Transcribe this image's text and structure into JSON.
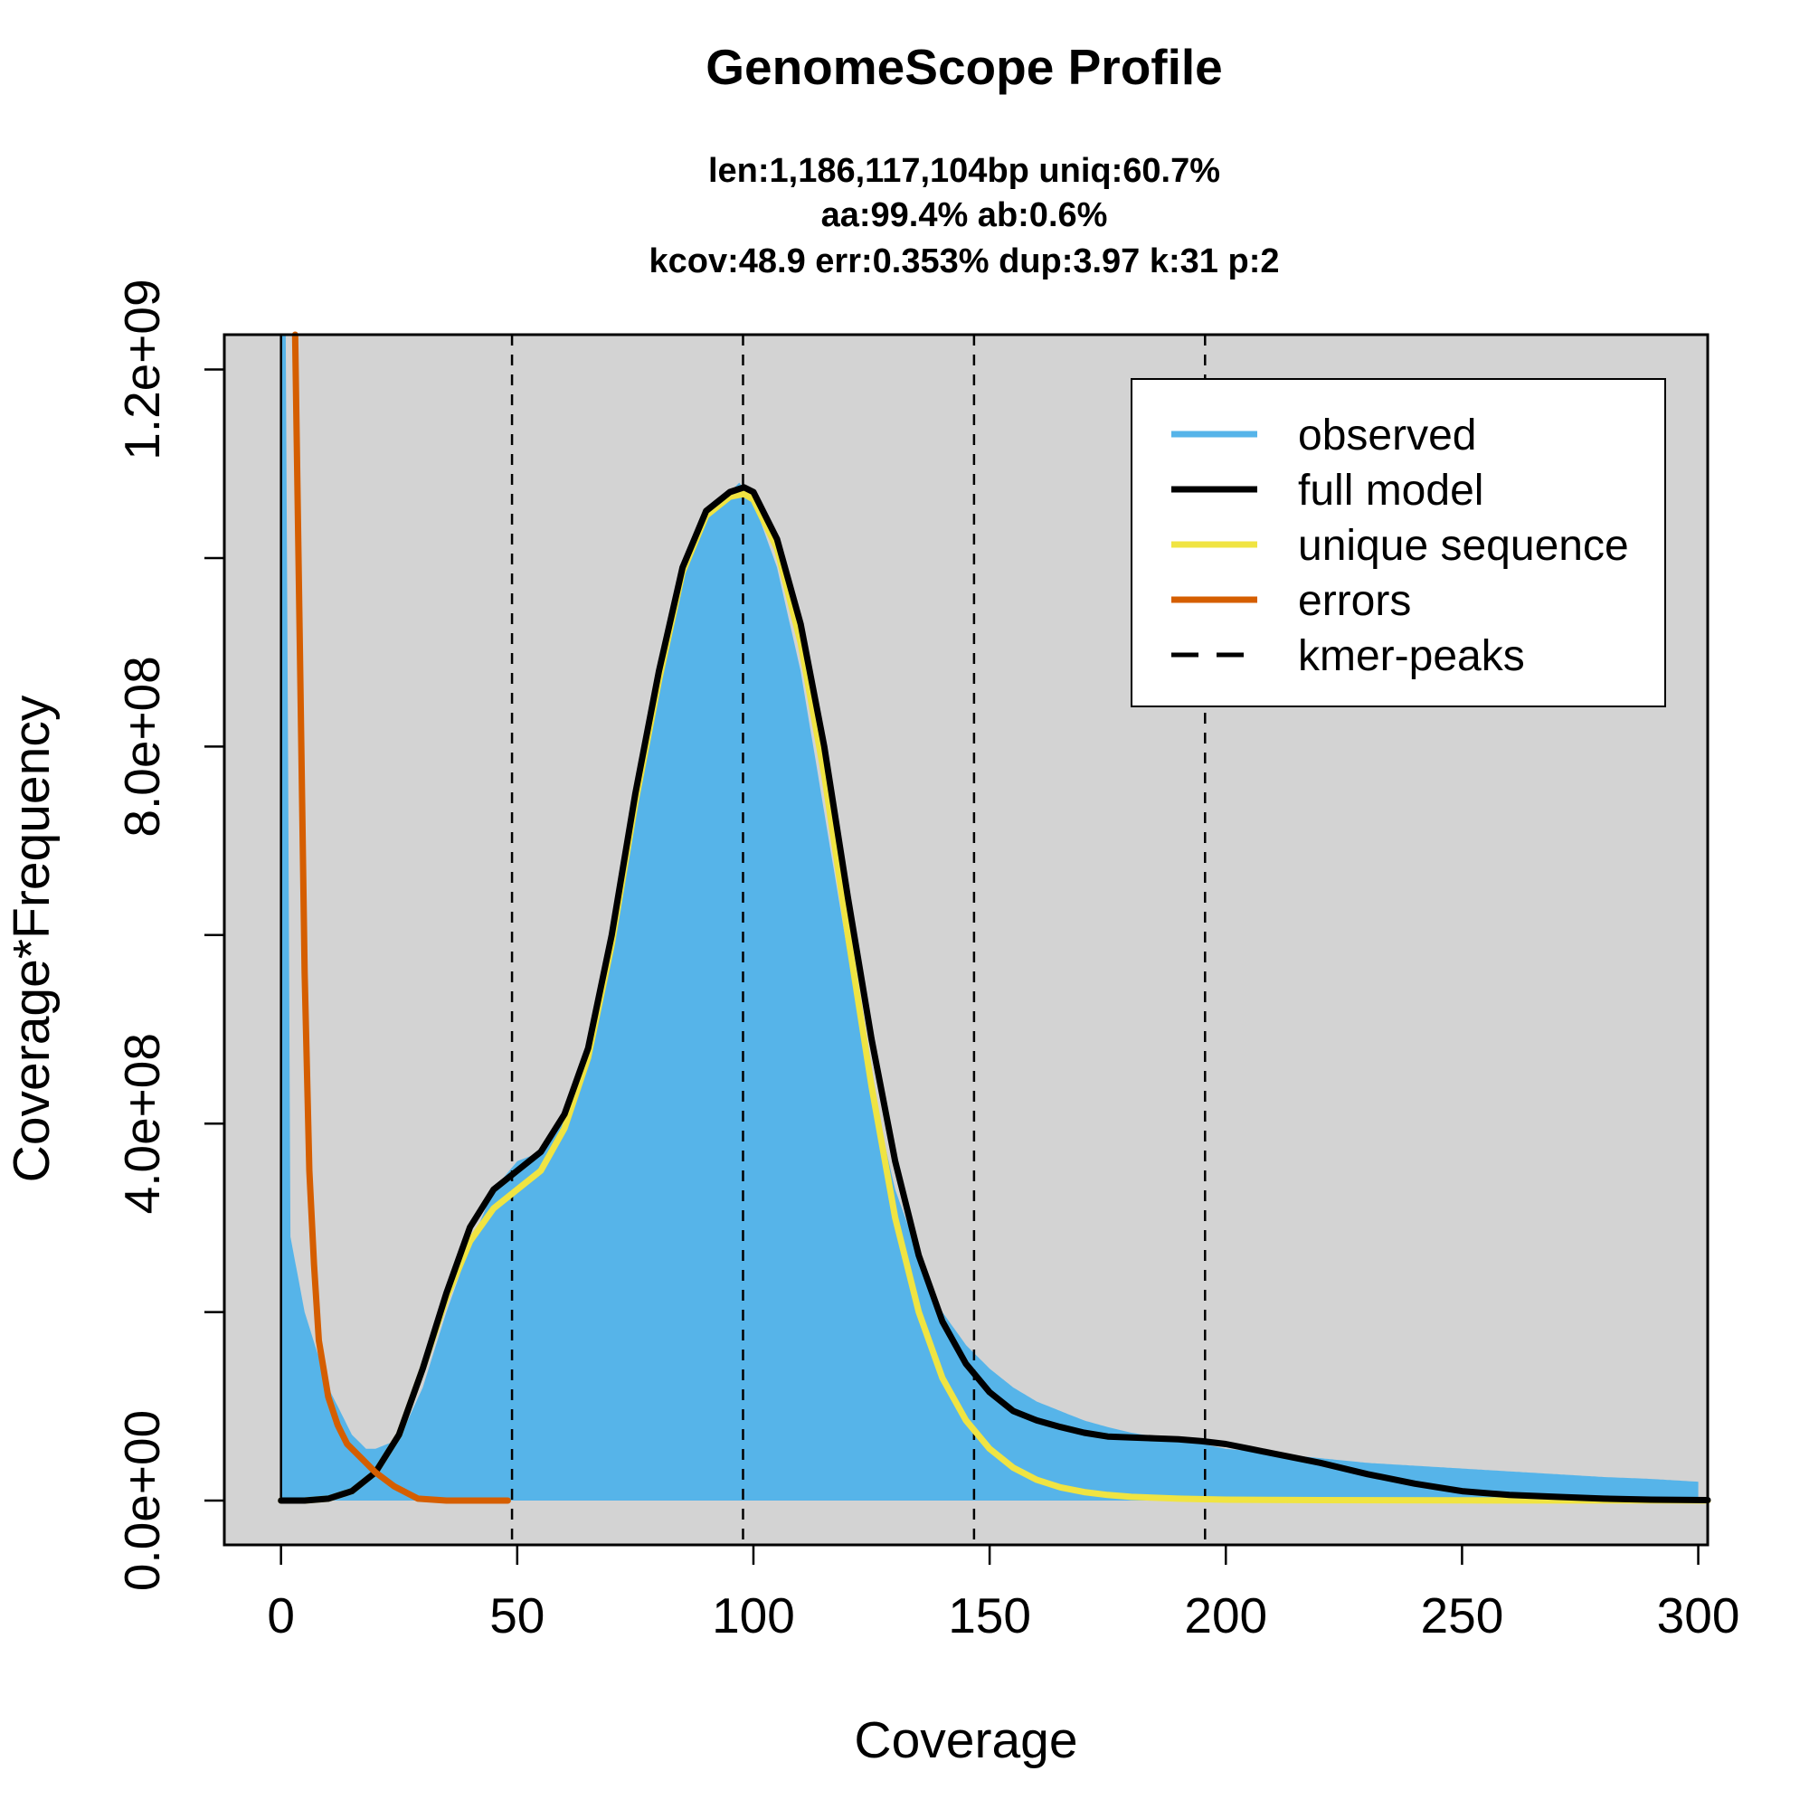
{
  "chart_data": {
    "type": "area",
    "title": "GenomeScope Profile",
    "subtitle_lines": [
      "len:1,186,117,104bp uniq:60.7%",
      "aa:99.4% ab:0.6%",
      "kcov:48.9 err:0.353%  dup:3.97  k:31 p:2"
    ],
    "xlabel": "Coverage",
    "ylabel": "Coverage*Frequency",
    "xlim": [
      -12,
      302
    ],
    "ylim": [
      -47000000,
      1237000000
    ],
    "x_ticks": [
      0,
      50,
      100,
      150,
      200,
      250,
      300
    ],
    "x_tick_labels": [
      "0",
      "50",
      "100",
      "150",
      "200",
      "250",
      "300"
    ],
    "y_ticks": [
      0,
      200000000,
      400000000,
      600000000,
      800000000,
      1000000000,
      1200000000
    ],
    "y_tick_labels": [
      "0.0e+00",
      "",
      "4.0e+08",
      "",
      "8.0e+08",
      "",
      "1.2e+09"
    ],
    "kmer_peaks": [
      48.9,
      97.8,
      146.7,
      195.6
    ],
    "colors": {
      "plot_background": "#d3d3d3",
      "observed": "#56b4e9",
      "full_model": "#000000",
      "unique_sequence": "#f0e442",
      "errors": "#d55e00"
    },
    "legend": {
      "position": "top-right",
      "entries": [
        {
          "label": "observed",
          "color": "#56b4e9",
          "style": "solid"
        },
        {
          "label": "full model",
          "color": "#000000",
          "style": "solid"
        },
        {
          "label": "unique sequence",
          "color": "#f0e442",
          "style": "solid"
        },
        {
          "label": "errors",
          "color": "#d55e00",
          "style": "solid"
        },
        {
          "label": "kmer-peaks",
          "color": "#000000",
          "style": "dashed"
        }
      ]
    },
    "series": [
      {
        "name": "observed",
        "x": [
          0,
          1,
          2,
          5,
          10,
          15,
          18,
          20,
          25,
          30,
          35,
          40,
          45,
          50,
          55,
          60,
          65,
          70,
          75,
          80,
          85,
          90,
          95,
          97,
          100,
          105,
          110,
          115,
          120,
          125,
          130,
          135,
          140,
          145,
          150,
          155,
          160,
          165,
          170,
          175,
          180,
          185,
          190,
          195,
          200,
          210,
          220,
          230,
          240,
          250,
          260,
          270,
          280,
          290,
          300
        ],
        "y": [
          1300000000,
          1300000000,
          280000000,
          200000000,
          120000000,
          70000000,
          55000000,
          55000000,
          65000000,
          120000000,
          200000000,
          270000000,
          330000000,
          360000000,
          370000000,
          410000000,
          480000000,
          590000000,
          730000000,
          870000000,
          980000000,
          1040000000,
          1070000000,
          1080000000,
          1060000000,
          990000000,
          880000000,
          730000000,
          580000000,
          440000000,
          330000000,
          260000000,
          200000000,
          165000000,
          140000000,
          120000000,
          105000000,
          95000000,
          85000000,
          78000000,
          72000000,
          68000000,
          64000000,
          60000000,
          55000000,
          50000000,
          45000000,
          40000000,
          37000000,
          34000000,
          31000000,
          28000000,
          25000000,
          23000000,
          20000000
        ]
      },
      {
        "name": "full model",
        "x": [
          0,
          5,
          10,
          15,
          20,
          25,
          30,
          35,
          40,
          45,
          50,
          55,
          60,
          65,
          70,
          75,
          80,
          85,
          90,
          95,
          98,
          100,
          105,
          110,
          115,
          120,
          125,
          130,
          135,
          140,
          145,
          150,
          155,
          160,
          165,
          170,
          175,
          180,
          185,
          190,
          195,
          200,
          205,
          210,
          220,
          230,
          240,
          250,
          260,
          270,
          280,
          290,
          302
        ],
        "y": [
          0,
          0,
          2000000,
          10000000,
          30000000,
          70000000,
          140000000,
          220000000,
          290000000,
          330000000,
          350000000,
          370000000,
          410000000,
          480000000,
          600000000,
          750000000,
          880000000,
          990000000,
          1050000000,
          1070000000,
          1075000000,
          1070000000,
          1020000000,
          930000000,
          800000000,
          640000000,
          490000000,
          360000000,
          260000000,
          190000000,
          145000000,
          115000000,
          95000000,
          85000000,
          78000000,
          72000000,
          68000000,
          67000000,
          66000000,
          65000000,
          63000000,
          60000000,
          55000000,
          50000000,
          40000000,
          28000000,
          18000000,
          10000000,
          6000000,
          4000000,
          2000000,
          1000000,
          500000
        ]
      },
      {
        "name": "unique sequence",
        "x": [
          0,
          5,
          10,
          15,
          20,
          25,
          30,
          35,
          40,
          45,
          50,
          55,
          60,
          65,
          70,
          75,
          80,
          85,
          90,
          95,
          98,
          100,
          105,
          110,
          115,
          120,
          125,
          130,
          135,
          140,
          145,
          150,
          155,
          160,
          165,
          170,
          175,
          180,
          190,
          200,
          220,
          250,
          302
        ],
        "y": [
          0,
          0,
          2000000,
          10000000,
          30000000,
          70000000,
          140000000,
          215000000,
          275000000,
          310000000,
          330000000,
          350000000,
          395000000,
          470000000,
          590000000,
          740000000,
          870000000,
          985000000,
          1045000000,
          1065000000,
          1068000000,
          1062000000,
          1010000000,
          910000000,
          770000000,
          600000000,
          440000000,
          300000000,
          200000000,
          130000000,
          85000000,
          55000000,
          35000000,
          22000000,
          14000000,
          9000000,
          6000000,
          4000000,
          2000000,
          1000000,
          500000,
          200000,
          0
        ]
      },
      {
        "name": "errors",
        "x": [
          3,
          4,
          5,
          6,
          7,
          8,
          9,
          10,
          12,
          14,
          17,
          20,
          24,
          29,
          35,
          40,
          48
        ],
        "y": [
          1240000000,
          900000000,
          560000000,
          350000000,
          250000000,
          170000000,
          140000000,
          110000000,
          80000000,
          60000000,
          45000000,
          30000000,
          15000000,
          2000000,
          0,
          0,
          0
        ]
      }
    ]
  }
}
